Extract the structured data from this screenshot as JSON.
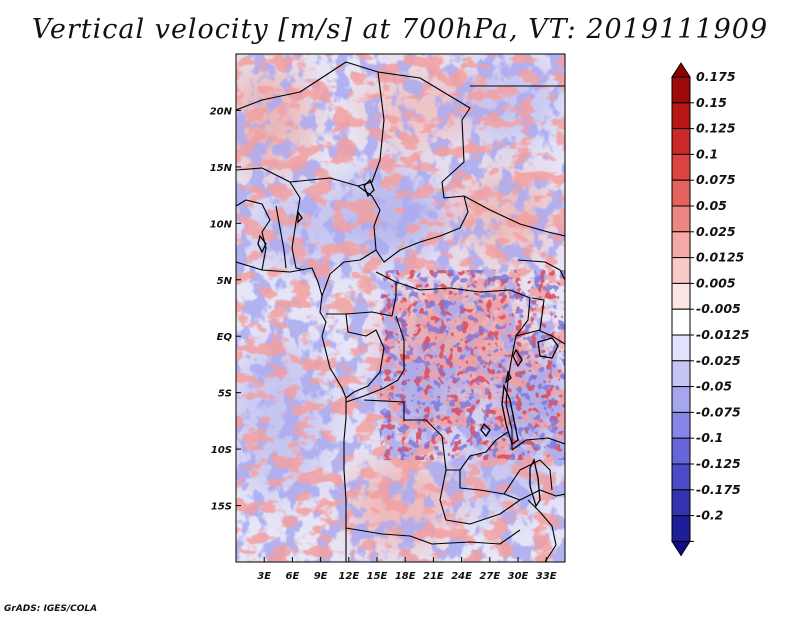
{
  "title": "Vertical velocity [m/s] at 700hPa, VT: 2019111909",
  "footer": "GrADS: IGES/COLA",
  "map": {
    "region": "Central and West-Central Africa",
    "lon_range": [
      0,
      35
    ],
    "lat_range": [
      -20,
      25
    ],
    "lat_labels": [
      {
        "value": 20,
        "label": "20N"
      },
      {
        "value": 15,
        "label": "15N"
      },
      {
        "value": 10,
        "label": "10N"
      },
      {
        "value": 5,
        "label": "5N"
      },
      {
        "value": 0,
        "label": "EQ"
      },
      {
        "value": -5,
        "label": "5S"
      },
      {
        "value": -10,
        "label": "10S"
      },
      {
        "value": -15,
        "label": "15S"
      }
    ],
    "lon_labels": [
      {
        "value": 3,
        "label": "3E"
      },
      {
        "value": 6,
        "label": "6E"
      },
      {
        "value": 9,
        "label": "9E"
      },
      {
        "value": 12,
        "label": "12E"
      },
      {
        "value": 15,
        "label": "15E"
      },
      {
        "value": 18,
        "label": "18E"
      },
      {
        "value": 21,
        "label": "21E"
      },
      {
        "value": 24,
        "label": "24E"
      },
      {
        "value": 27,
        "label": "27E"
      },
      {
        "value": 30,
        "label": "30E"
      },
      {
        "value": 33,
        "label": "33E"
      }
    ]
  },
  "colorbar": {
    "entries": [
      {
        "label": "0.175",
        "color": "#9e0a0a"
      },
      {
        "label": "0.15",
        "color": "#b81616"
      },
      {
        "label": "0.125",
        "color": "#cc2a28"
      },
      {
        "label": "0.1",
        "color": "#dc4441"
      },
      {
        "label": "0.075",
        "color": "#e4625e"
      },
      {
        "label": "0.05",
        "color": "#ec8682"
      },
      {
        "label": "0.025",
        "color": "#f4aaa6"
      },
      {
        "label": "0.0125",
        "color": "#f9cac6"
      },
      {
        "label": "0.005",
        "color": "#fce6e4"
      },
      {
        "label": "-0.005",
        "color": "#ffffff"
      },
      {
        "label": "-0.0125",
        "color": "#e2e2fc"
      },
      {
        "label": "-0.025",
        "color": "#c6c6f6"
      },
      {
        "label": "-0.05",
        "color": "#a6a6ef"
      },
      {
        "label": "-0.075",
        "color": "#8686e6"
      },
      {
        "label": "-0.1",
        "color": "#6666da"
      },
      {
        "label": "-0.125",
        "color": "#4c4cc8"
      },
      {
        "label": "-0.175",
        "color": "#3434b2"
      },
      {
        "label": "-0.2",
        "color": "#1e1e98"
      }
    ],
    "top_color": "#8c0000",
    "bottom_color": "#120a88"
  }
}
